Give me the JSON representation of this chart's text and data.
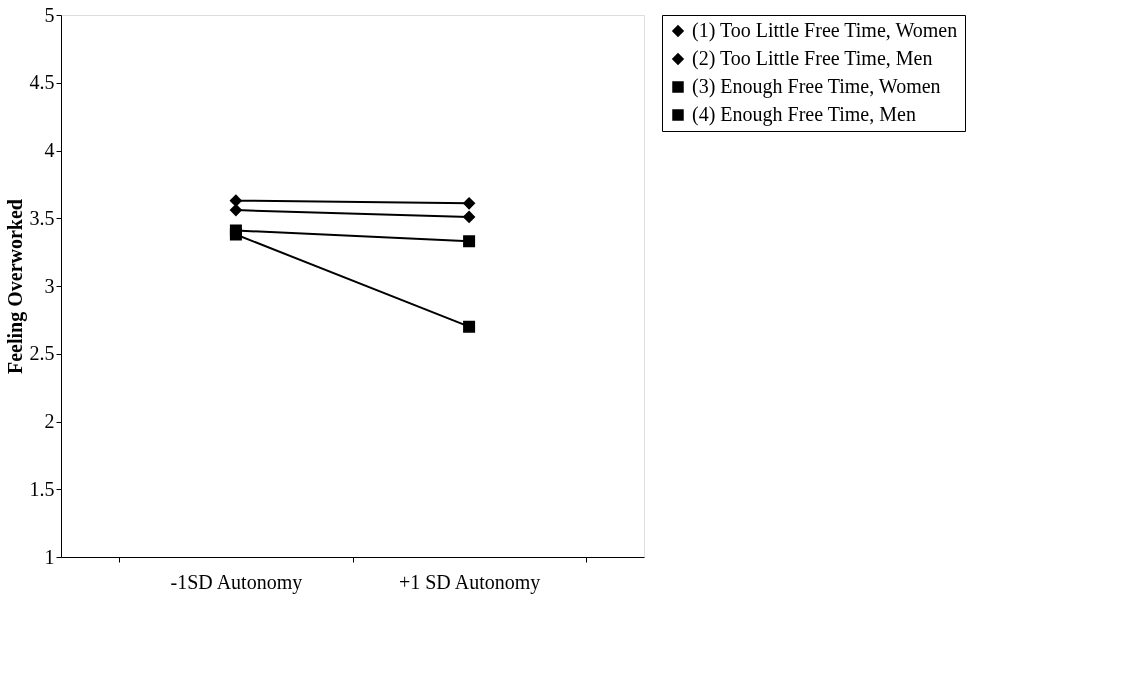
{
  "chart_data": {
    "type": "line",
    "ylabel": "Feeling Overworked",
    "categories": [
      "-1SD Autonomy",
      "+1 SD Autonomy"
    ],
    "series": [
      {
        "name": "(1) Too Little Free Time, Women",
        "color": "#000000",
        "marker": "diamond",
        "values": [
          3.63,
          3.61
        ]
      },
      {
        "name": "(2) Too Little Free Time, Men",
        "color": "#000000",
        "marker": "diamond",
        "values": [
          3.56,
          3.51
        ]
      },
      {
        "name": "(3) Enough Free Time, Women",
        "color": "#000000",
        "marker": "square",
        "values": [
          3.41,
          3.33
        ]
      },
      {
        "name": "(4) Enough Free Time, Men",
        "color": "#000000",
        "marker": "square",
        "values": [
          3.38,
          2.7
        ]
      }
    ],
    "ylim": [
      1,
      5
    ],
    "yticks": [
      1,
      1.5,
      2,
      2.5,
      3,
      3.5,
      4,
      4.5,
      5
    ],
    "grid": false,
    "legend": "right",
    "line_style": "solid"
  }
}
